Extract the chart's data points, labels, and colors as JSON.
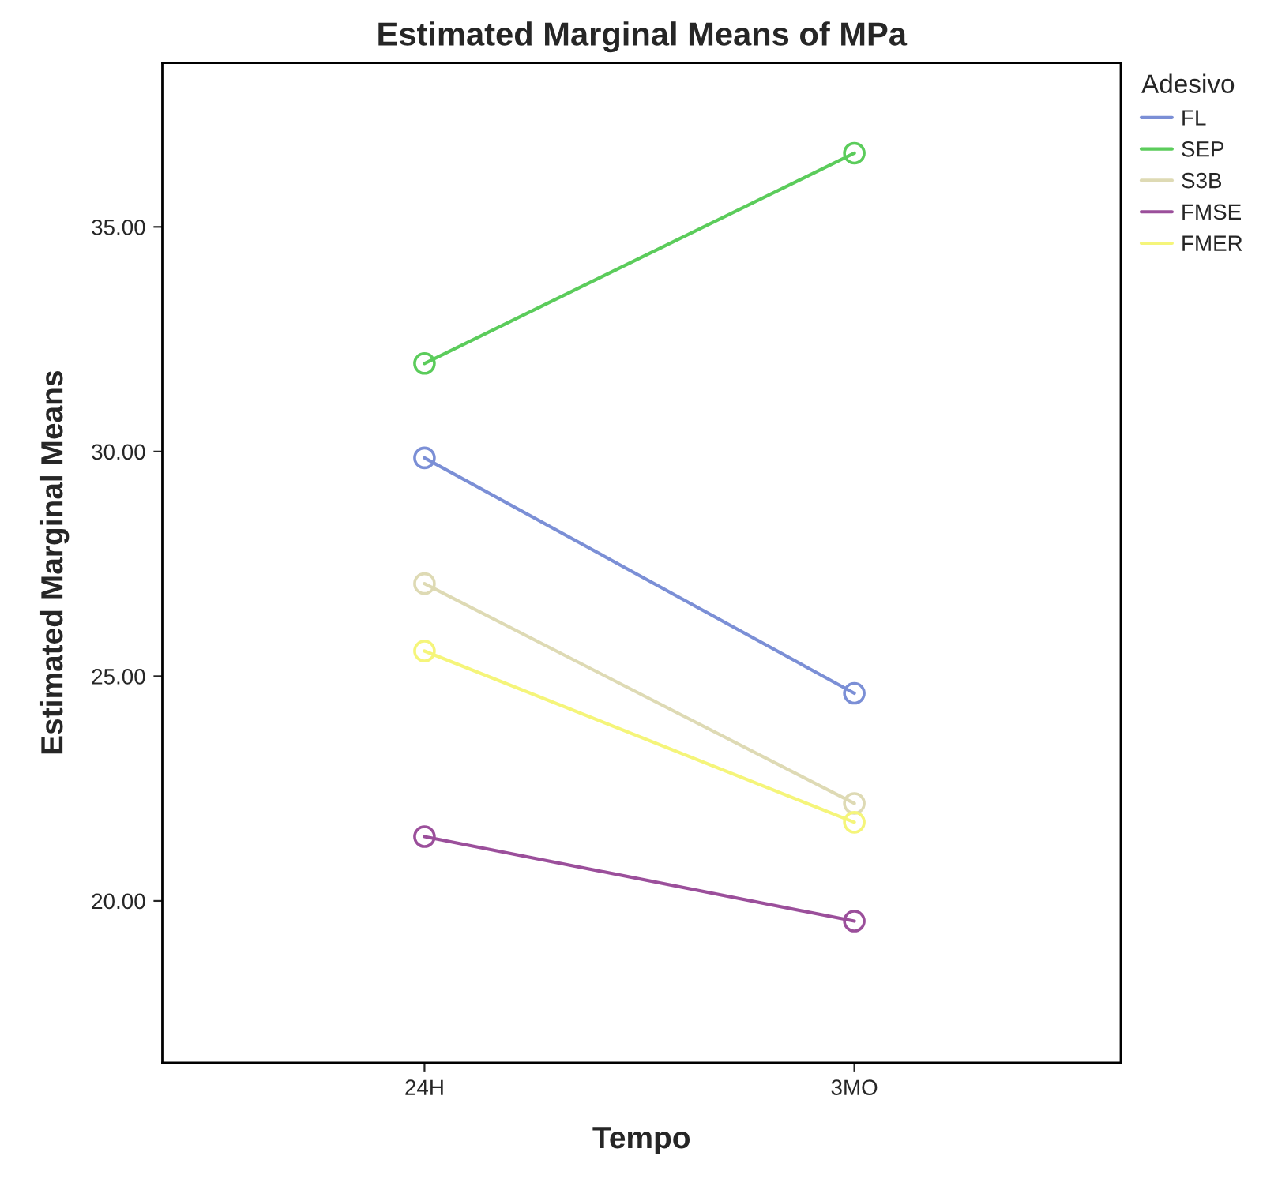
{
  "chart_data": {
    "type": "line",
    "title": "Estimated Marginal Means of MPa",
    "xlabel": "Tempo",
    "ylabel": "Estimated Marginal Means",
    "legend_title": "Adesivo",
    "categories": [
      "24H",
      "3MO"
    ],
    "series": [
      {
        "name": "FL",
        "color": "#7b8fd6",
        "values": [
          29.86,
          24.62
        ]
      },
      {
        "name": "SEP",
        "color": "#5bcc5b",
        "values": [
          31.96,
          36.64
        ]
      },
      {
        "name": "S3B",
        "color": "#dedab4",
        "values": [
          27.06,
          22.17
        ]
      },
      {
        "name": "FMSE",
        "color": "#9b4f9b",
        "values": [
          21.43,
          19.55
        ]
      },
      {
        "name": "FMER",
        "color": "#f5f57a",
        "values": [
          25.56,
          21.75
        ]
      }
    ],
    "ylim": [
      16.4,
      38.65
    ],
    "yticks": [
      {
        "value": 20,
        "label": "20.00"
      },
      {
        "value": 25,
        "label": "25.00"
      },
      {
        "value": 30,
        "label": "30.00"
      },
      {
        "value": 35,
        "label": "35.00"
      }
    ],
    "grid": false,
    "legend": "right",
    "marker": "circle",
    "line_style": "solid"
  }
}
